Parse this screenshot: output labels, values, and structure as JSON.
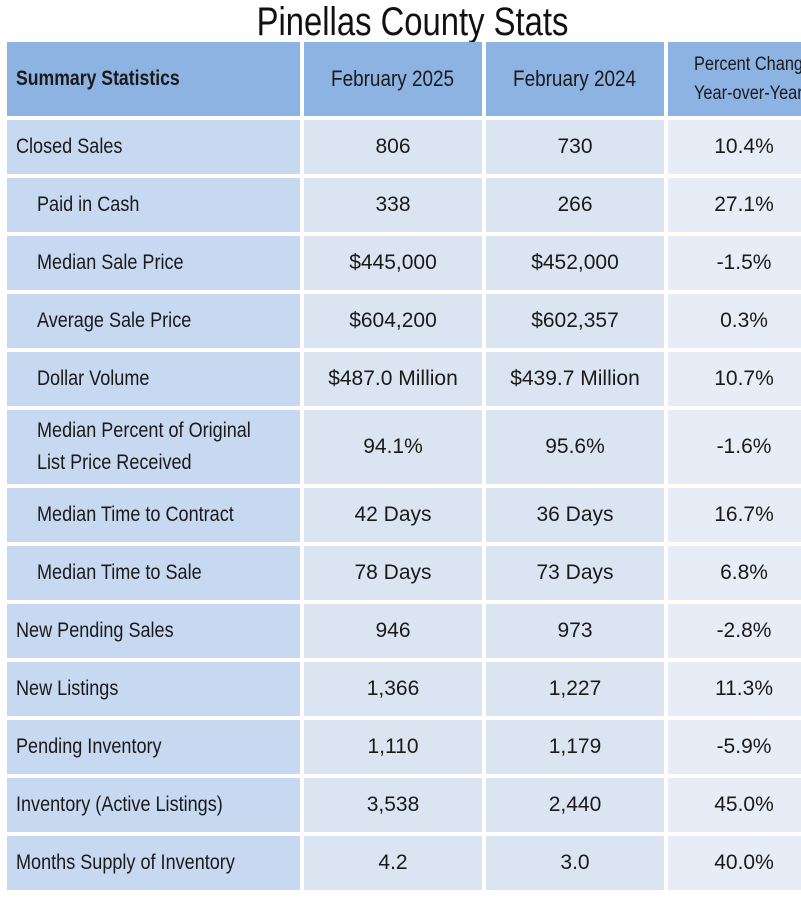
{
  "title": "Pinellas County Stats",
  "table": {
    "headers": [
      "Summary Statistics",
      "February 2025",
      "February 2024"
    ],
    "change_header": [
      "Percent Change",
      "Year-over-Year"
    ],
    "rows": [
      {
        "label": "Closed Sales",
        "feb2025": "806",
        "feb2024": "730",
        "change": "10.4%"
      },
      {
        "label": "Paid in Cash",
        "feb2025": "338",
        "feb2024": "266",
        "change": "27.1%"
      },
      {
        "label": "Median Sale Price",
        "feb2025": "$445,000",
        "feb2024": "$452,000",
        "change": "-1.5%"
      },
      {
        "label": "Average Sale Price",
        "feb2025": "$604,200",
        "feb2024": "$602,357",
        "change": "0.3%"
      },
      {
        "label": "Dollar Volume",
        "feb2025": "$487.0 Million",
        "feb2024": "$439.7 Million",
        "change": "10.7%"
      },
      {
        "label": "Median Percent of Original List Price Received",
        "feb2025": "94.1%",
        "feb2024": "95.6%",
        "change": "-1.6%"
      },
      {
        "label": "Median Time to Contract",
        "feb2025": "42 Days",
        "feb2024": "36 Days",
        "change": "16.7%"
      },
      {
        "label": "Median Time to Sale",
        "feb2025": "78 Days",
        "feb2024": "73 Days",
        "change": "6.8%"
      },
      {
        "label": "New Pending Sales",
        "feb2025": "946",
        "feb2024": "973",
        "change": "-2.8%"
      },
      {
        "label": "New Listings",
        "feb2025": "1,366",
        "feb2024": "1,227",
        "change": "11.3%"
      },
      {
        "label": "Pending Inventory",
        "feb2025": "1,110",
        "feb2024": "1,179",
        "change": "-5.9%"
      },
      {
        "label": "Inventory (Active Listings)",
        "feb2025": "3,538",
        "feb2024": "2,440",
        "change": "45.0%"
      },
      {
        "label": "Months Supply of Inventory",
        "feb2025": "4.2",
        "feb2024": "3.0",
        "change": "40.0%"
      }
    ]
  }
}
